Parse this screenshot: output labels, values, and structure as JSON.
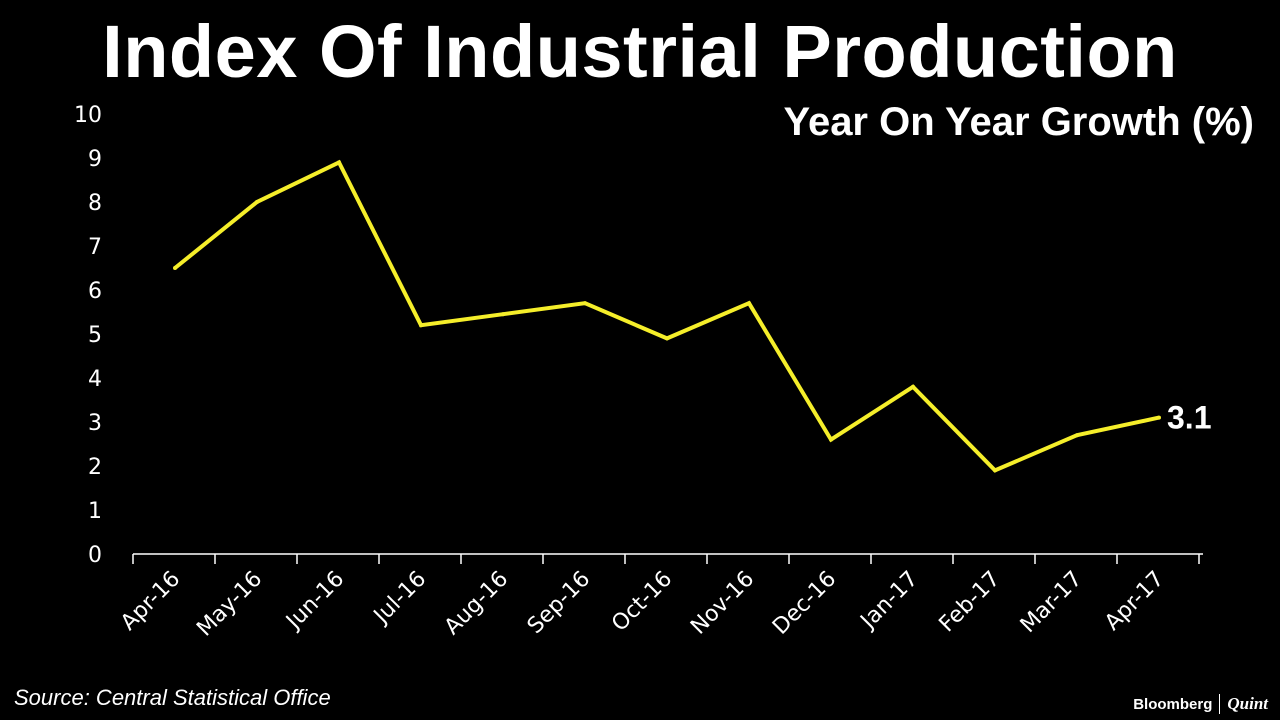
{
  "source_text": "Source: Central Statistical Office",
  "logo": {
    "brand_a": "Bloomberg",
    "brand_b": "Quint"
  },
  "colors": {
    "background": "#000000",
    "line": "#f5ee2a",
    "text": "#ffffff",
    "axis": "#ffffff"
  },
  "chart_data": {
    "type": "line",
    "title": "Index Of Industrial Production",
    "subtitle": "Year On Year Growth (%)",
    "xlabel": "",
    "ylabel": "",
    "ylim": [
      0,
      10
    ],
    "yticks": [
      "0",
      "1",
      "2",
      "3",
      "4",
      "5",
      "6",
      "7",
      "8",
      "9",
      "10"
    ],
    "grid": false,
    "legend": "none",
    "categories": [
      "Apr-16",
      "May-16",
      "Jun-16",
      "Jul-16",
      "Aug-16",
      "Sep-16",
      "Oct-16",
      "Nov-16",
      "Dec-16",
      "Jan-17",
      "Feb-17",
      "Mar-17",
      "Apr-17"
    ],
    "series": [
      {
        "values": [
          6.5,
          8.0,
          8.9,
          5.2,
          5.45,
          5.7,
          4.9,
          5.7,
          2.6,
          3.8,
          1.9,
          2.7,
          3.1
        ]
      }
    ],
    "annotations": [
      {
        "category": "Apr-17",
        "text": "3.1"
      }
    ]
  }
}
